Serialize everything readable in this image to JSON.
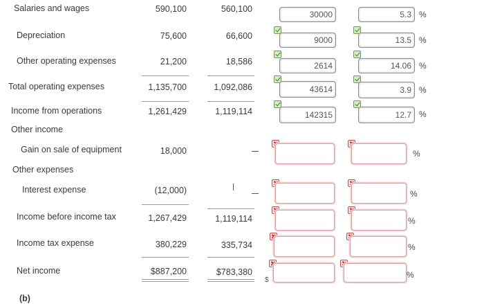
{
  "rows": {
    "salaries": {
      "label": "Salaries and wages",
      "y1": "590,100",
      "y2": "560,100",
      "amount": "30000",
      "percent": "5.3"
    },
    "depreciation": {
      "label": "Depreciation",
      "y1": "75,600",
      "y2": "66,600",
      "amount": "9000",
      "percent": "13.5"
    },
    "other_opex": {
      "label": "Other operating expenses",
      "y1": "21,200",
      "y2": "18,586",
      "amount": "2614",
      "percent": "14.06"
    },
    "total_opex": {
      "label": "Total operating expenses",
      "y1": "1,135,700",
      "y2": "1,092,086",
      "amount": "43614",
      "percent": "3.9"
    },
    "income_ops": {
      "label": "Income from operations",
      "y1": "1,261,429",
      "y2": "1,119,114",
      "amount": "142315",
      "percent": "12.7"
    },
    "other_income": {
      "label": "Other income"
    },
    "gain_sale": {
      "label": "Gain on sale of equipment",
      "y1": "18,000",
      "amount": "",
      "percent": ""
    },
    "other_expenses": {
      "label": "Other expenses"
    },
    "interest": {
      "label": "Interest expense",
      "y1": "(12,000)",
      "amount": "",
      "percent": ""
    },
    "income_before_tax": {
      "label": "Income before income tax",
      "y1": "1,267,429",
      "y2": "1,119,114",
      "amount": "",
      "percent": ""
    },
    "tax": {
      "label": "Income tax expense",
      "y1": "380,229",
      "y2": "335,734",
      "amount": "",
      "percent": ""
    },
    "net_income": {
      "label": "Net income",
      "y1": "$887,200",
      "y2": "$783,380",
      "amount": "",
      "percent": ""
    }
  },
  "symbols": {
    "percent": "%",
    "dollar": "$"
  },
  "part_label": "(b)",
  "colors": {
    "correct": "#6f9a5a",
    "incorrect": "#d6a0a0"
  },
  "icons": {
    "correct": "check-icon",
    "incorrect": "x-icon"
  }
}
